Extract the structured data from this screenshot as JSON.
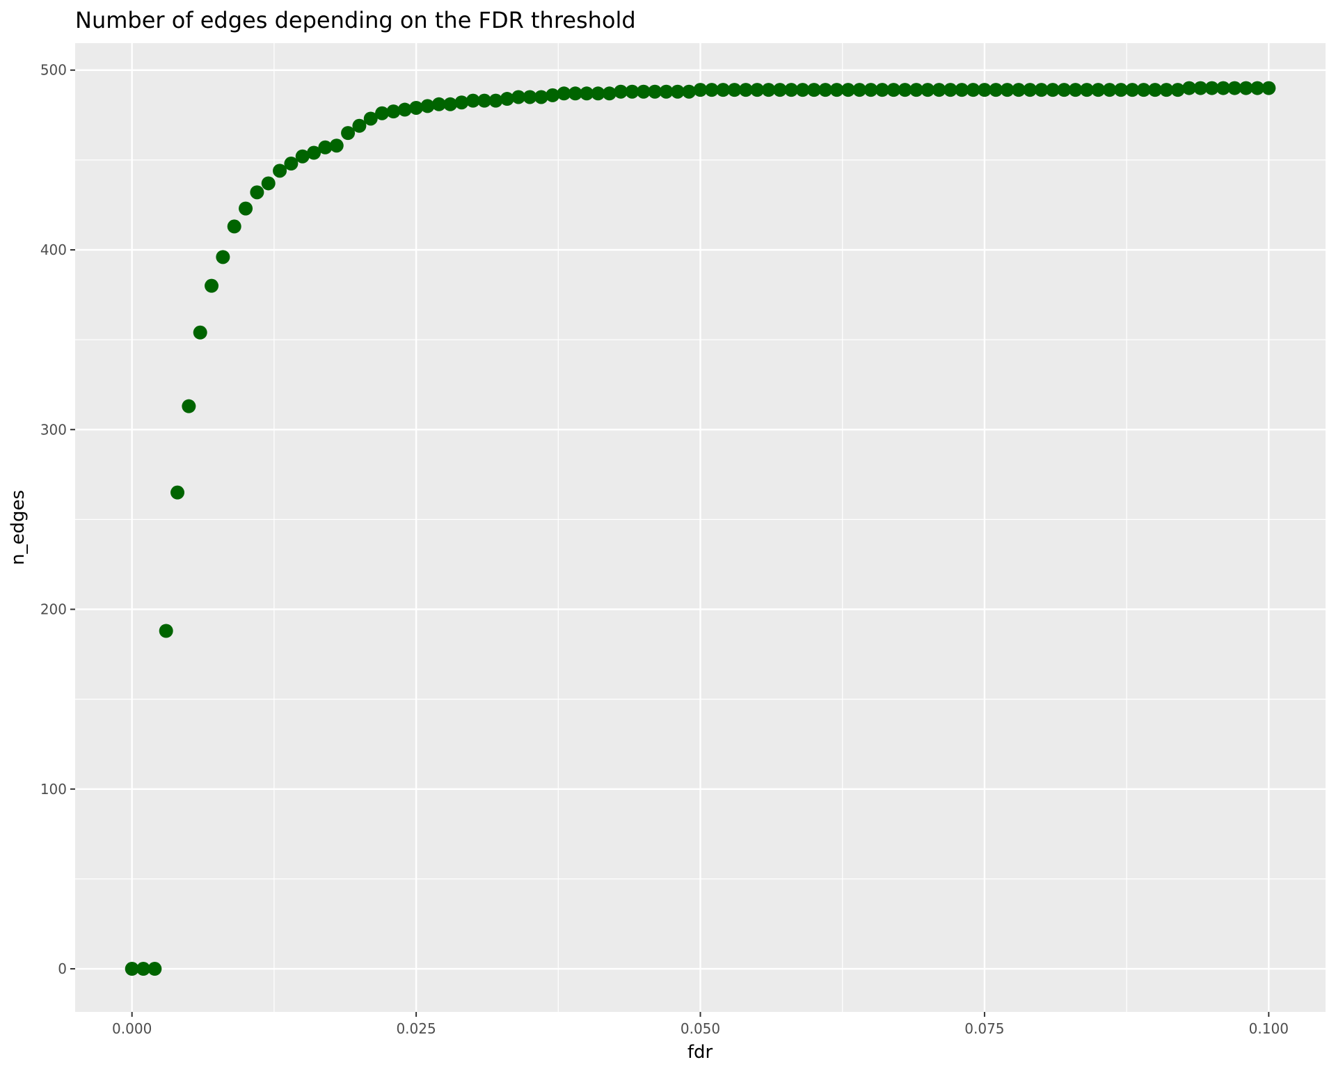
{
  "chart_data": {
    "type": "scatter",
    "title": "Number of edges depending on the FDR threshold",
    "xlabel": "fdr",
    "ylabel": "n_edges",
    "xlim": [
      -0.005,
      0.105
    ],
    "ylim": [
      -24,
      515
    ],
    "x_ticks": [
      0.0,
      0.025,
      0.05,
      0.075,
      0.1
    ],
    "x_tick_labels": [
      "0.000",
      "0.025",
      "0.050",
      "0.075",
      "0.100"
    ],
    "y_ticks": [
      0,
      100,
      200,
      300,
      400,
      500
    ],
    "y_tick_labels": [
      "0",
      "100",
      "200",
      "300",
      "400",
      "500"
    ],
    "grid": true,
    "point_color": "#006400",
    "panel_color": "#ebebeb",
    "grid_color": "#ffffff",
    "series": [
      {
        "x": [
          0.0,
          0.001,
          0.002,
          0.003,
          0.004,
          0.005,
          0.006,
          0.007,
          0.008,
          0.009,
          0.01,
          0.011,
          0.012,
          0.013,
          0.014,
          0.015,
          0.016,
          0.017,
          0.018,
          0.019,
          0.02,
          0.021,
          0.022,
          0.023,
          0.024,
          0.025,
          0.026,
          0.027,
          0.028,
          0.029,
          0.03,
          0.031,
          0.032,
          0.033,
          0.034,
          0.035,
          0.036,
          0.037,
          0.038,
          0.039,
          0.04,
          0.041,
          0.042,
          0.043,
          0.044,
          0.045,
          0.046,
          0.047,
          0.048,
          0.049,
          0.05,
          0.051,
          0.052,
          0.053,
          0.054,
          0.055,
          0.056,
          0.057,
          0.058,
          0.059,
          0.06,
          0.061,
          0.062,
          0.063,
          0.064,
          0.065,
          0.066,
          0.067,
          0.068,
          0.069,
          0.07,
          0.071,
          0.072,
          0.073,
          0.074,
          0.075,
          0.076,
          0.077,
          0.078,
          0.079,
          0.08,
          0.081,
          0.082,
          0.083,
          0.084,
          0.085,
          0.086,
          0.087,
          0.088,
          0.089,
          0.09,
          0.091,
          0.092,
          0.093,
          0.094,
          0.095,
          0.096,
          0.097,
          0.098,
          0.099,
          0.1
        ],
        "y": [
          0,
          0,
          0,
          188,
          265,
          313,
          354,
          380,
          396,
          413,
          423,
          432,
          437,
          444,
          448,
          452,
          454,
          457,
          458,
          465,
          469,
          473,
          476,
          477,
          478,
          479,
          480,
          481,
          481,
          482,
          483,
          483,
          483,
          484,
          485,
          485,
          485,
          486,
          487,
          487,
          487,
          487,
          487,
          488,
          488,
          488,
          488,
          488,
          488,
          488,
          489,
          489,
          489,
          489,
          489,
          489,
          489,
          489,
          489,
          489,
          489,
          489,
          489,
          489,
          489,
          489,
          489,
          489,
          489,
          489,
          489,
          489,
          489,
          489,
          489,
          489,
          489,
          489,
          489,
          489,
          489,
          489,
          489,
          489,
          489,
          489,
          489,
          489,
          489,
          489,
          489,
          489,
          489,
          490,
          490,
          490,
          490,
          490,
          490,
          490,
          490
        ]
      }
    ]
  }
}
